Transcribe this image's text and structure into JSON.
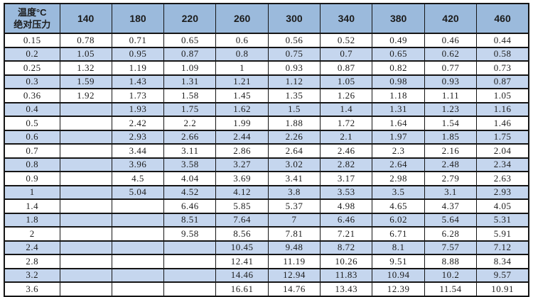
{
  "table": {
    "corner": {
      "line1": "温度°C",
      "line2": "绝对压力"
    },
    "temperature_columns": [
      "140",
      "180",
      "220",
      "260",
      "300",
      "340",
      "380",
      "420",
      "460"
    ],
    "rows": [
      {
        "pressure": "0.15",
        "values": [
          "0.78",
          "0.71",
          "0.65",
          "0.6",
          "0.56",
          "0.52",
          "0.49",
          "0.46",
          "0.44"
        ]
      },
      {
        "pressure": "0.2",
        "values": [
          "1.05",
          "0.95",
          "0.87",
          "0.8",
          "0.75",
          "0.7",
          "0.65",
          "0.62",
          "0.58"
        ]
      },
      {
        "pressure": "0.25",
        "values": [
          "1.32",
          "1.19",
          "1.09",
          "1",
          "0.93",
          "0.87",
          "0.82",
          "0.77",
          "0.73"
        ]
      },
      {
        "pressure": "0.3",
        "values": [
          "1.59",
          "1.43",
          "1.31",
          "1.21",
          "1.12",
          "1.05",
          "0.98",
          "0.93",
          "0.87"
        ]
      },
      {
        "pressure": "0.36",
        "values": [
          "1.92",
          "1.73",
          "1.58",
          "1.45",
          "1.35",
          "1.26",
          "1.18",
          "1.11",
          "1.05"
        ]
      },
      {
        "pressure": "0.4",
        "values": [
          "",
          "1.93",
          "1.75",
          "1.62",
          "1.5",
          "1.4",
          "1.31",
          "1.23",
          "1.16"
        ]
      },
      {
        "pressure": "0.5",
        "values": [
          "",
          "2.42",
          "2.2",
          "1.99",
          "1.88",
          "1.72",
          "1.64",
          "1.54",
          "1.46"
        ]
      },
      {
        "pressure": "0.6",
        "values": [
          "",
          "2.93",
          "2.66",
          "2.44",
          "2.26",
          "2.1",
          "1.97",
          "1.85",
          "1.75"
        ]
      },
      {
        "pressure": "0.7",
        "values": [
          "",
          "3.44",
          "3.11",
          "2.86",
          "2.64",
          "2.46",
          "2.3",
          "2.16",
          "2.04"
        ]
      },
      {
        "pressure": "0.8",
        "values": [
          "",
          "3.96",
          "3.58",
          "3.27",
          "3.02",
          "2.82",
          "2.64",
          "2.48",
          "2.34"
        ]
      },
      {
        "pressure": "0.9",
        "values": [
          "",
          "4.5",
          "4.04",
          "3.69",
          "3.41",
          "3.17",
          "2.98",
          "2.79",
          "2.63"
        ]
      },
      {
        "pressure": "1",
        "values": [
          "",
          "5.04",
          "4.52",
          "4.12",
          "3.8",
          "3.53",
          "3.5",
          "3.1",
          "2.93"
        ]
      },
      {
        "pressure": "1.4",
        "values": [
          "",
          "",
          "6.46",
          "5.85",
          "5.37",
          "4.98",
          "4.65",
          "4.37",
          "4.05"
        ]
      },
      {
        "pressure": "1.8",
        "values": [
          "",
          "",
          "8.51",
          "7.64",
          "7",
          "6.46",
          "6.02",
          "5.64",
          "5.31"
        ]
      },
      {
        "pressure": "2",
        "values": [
          "",
          "",
          "9.58",
          "8.56",
          "7.81",
          "7.21",
          "6.71",
          "6.28",
          "5.91"
        ]
      },
      {
        "pressure": "2.4",
        "values": [
          "",
          "",
          "",
          "10.45",
          "9.48",
          "8.72",
          "8.1",
          "7.57",
          "7.12"
        ]
      },
      {
        "pressure": "2.8",
        "values": [
          "",
          "",
          "",
          "12.41",
          "11.19",
          "10.26",
          "9.51",
          "8.88",
          "8.34"
        ]
      },
      {
        "pressure": "3.2",
        "values": [
          "",
          "",
          "",
          "14.46",
          "12.94",
          "11.83",
          "10.94",
          "10.2",
          "9.57"
        ]
      },
      {
        "pressure": "3.6",
        "values": [
          "",
          "",
          "",
          "16.61",
          "14.76",
          "13.43",
          "12.39",
          "11.54",
          "10.91"
        ]
      }
    ]
  },
  "colors": {
    "header_bg": "#9bbadc",
    "stripe_bg": "#c5d6ee",
    "row_bg": "#ffffff",
    "border": "#151515",
    "text": "#1c1c1c"
  },
  "chart_data": {
    "type": "table",
    "title": "",
    "corner_header": "温度°C / 绝对压力",
    "column_header_label": "温度°C",
    "row_header_label": "绝对压力",
    "columns": [
      140,
      180,
      220,
      260,
      300,
      340,
      380,
      420,
      460
    ],
    "row_headers": [
      0.15,
      0.2,
      0.25,
      0.3,
      0.36,
      0.4,
      0.5,
      0.6,
      0.7,
      0.8,
      0.9,
      1,
      1.4,
      1.8,
      2,
      2.4,
      2.8,
      3.2,
      3.6
    ],
    "matrix": [
      [
        0.78,
        0.71,
        0.65,
        0.6,
        0.56,
        0.52,
        0.49,
        0.46,
        0.44
      ],
      [
        1.05,
        0.95,
        0.87,
        0.8,
        0.75,
        0.7,
        0.65,
        0.62,
        0.58
      ],
      [
        1.32,
        1.19,
        1.09,
        1,
        0.93,
        0.87,
        0.82,
        0.77,
        0.73
      ],
      [
        1.59,
        1.43,
        1.31,
        1.21,
        1.12,
        1.05,
        0.98,
        0.93,
        0.87
      ],
      [
        1.92,
        1.73,
        1.58,
        1.45,
        1.35,
        1.26,
        1.18,
        1.11,
        1.05
      ],
      [
        null,
        1.93,
        1.75,
        1.62,
        1.5,
        1.4,
        1.31,
        1.23,
        1.16
      ],
      [
        null,
        2.42,
        2.2,
        1.99,
        1.88,
        1.72,
        1.64,
        1.54,
        1.46
      ],
      [
        null,
        2.93,
        2.66,
        2.44,
        2.26,
        2.1,
        1.97,
        1.85,
        1.75
      ],
      [
        null,
        3.44,
        3.11,
        2.86,
        2.64,
        2.46,
        2.3,
        2.16,
        2.04
      ],
      [
        null,
        3.96,
        3.58,
        3.27,
        3.02,
        2.82,
        2.64,
        2.48,
        2.34
      ],
      [
        null,
        4.5,
        4.04,
        3.69,
        3.41,
        3.17,
        2.98,
        2.79,
        2.63
      ],
      [
        null,
        5.04,
        4.52,
        4.12,
        3.8,
        3.53,
        3.5,
        3.1,
        2.93
      ],
      [
        null,
        null,
        6.46,
        5.85,
        5.37,
        4.98,
        4.65,
        4.37,
        4.05
      ],
      [
        null,
        null,
        8.51,
        7.64,
        7,
        6.46,
        6.02,
        5.64,
        5.31
      ],
      [
        null,
        null,
        9.58,
        8.56,
        7.81,
        7.21,
        6.71,
        6.28,
        5.91
      ],
      [
        null,
        null,
        null,
        10.45,
        9.48,
        8.72,
        8.1,
        7.57,
        7.12
      ],
      [
        null,
        null,
        null,
        12.41,
        11.19,
        10.26,
        9.51,
        8.88,
        8.34
      ],
      [
        null,
        null,
        null,
        14.46,
        12.94,
        11.83,
        10.94,
        10.2,
        9.57
      ],
      [
        null,
        null,
        null,
        16.61,
        14.76,
        13.43,
        12.39,
        11.54,
        10.91
      ]
    ]
  }
}
